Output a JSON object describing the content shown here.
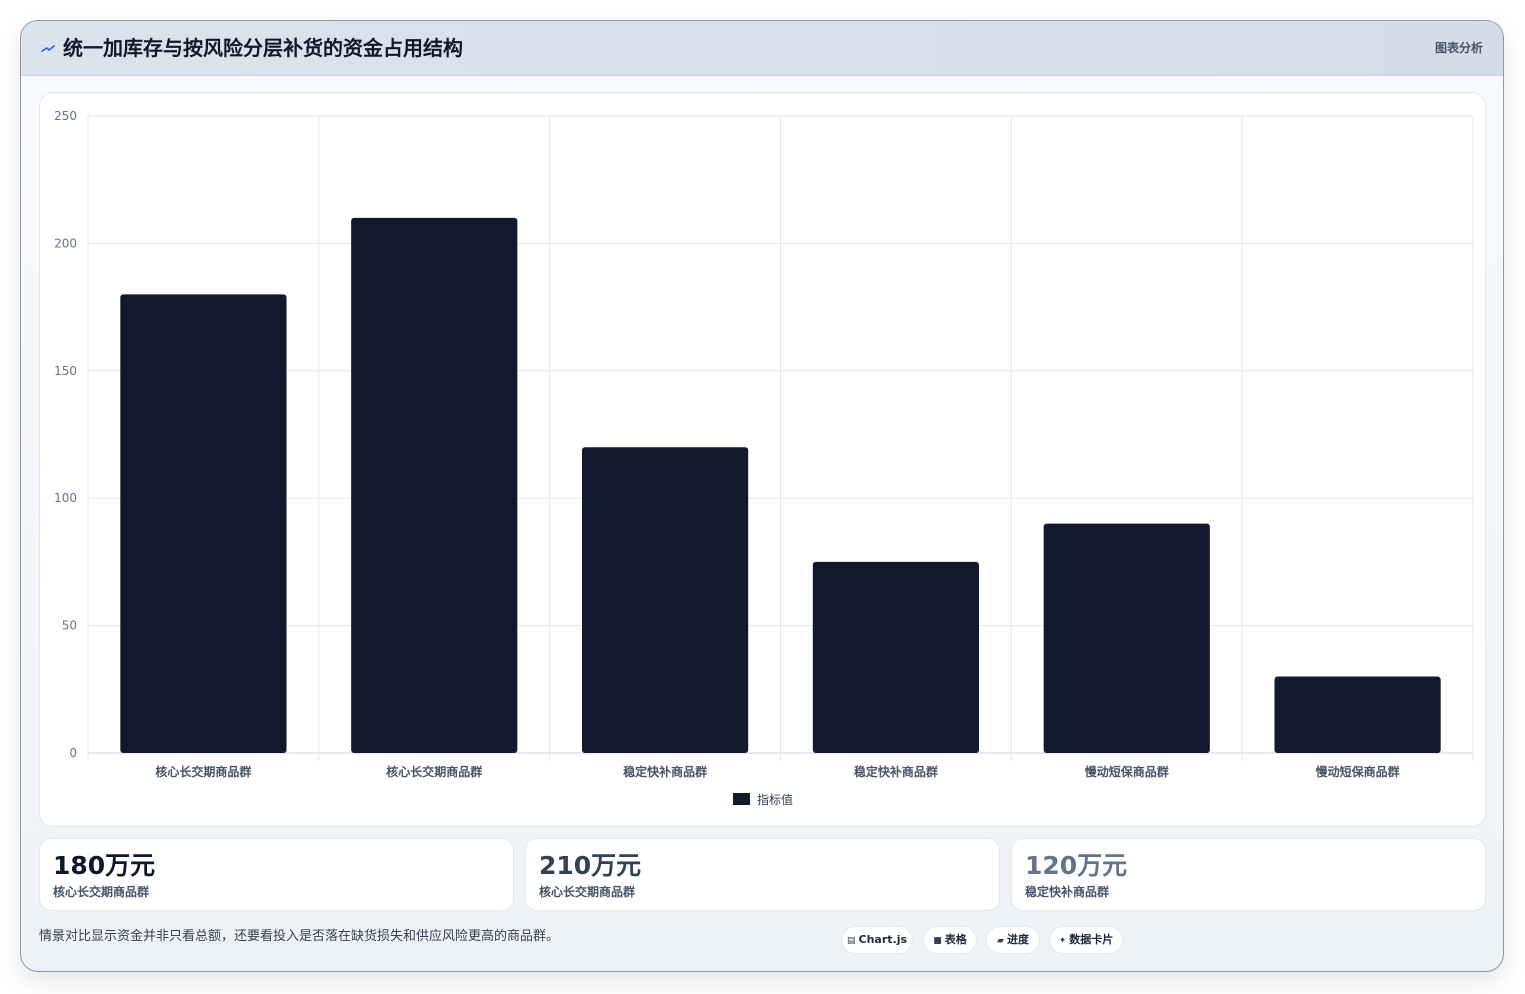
{
  "header": {
    "title": "统一加库存与按风险分层补货的资金占用结构",
    "tag": "图表分析",
    "title_icon": "trend-icon"
  },
  "chart_data": {
    "type": "bar",
    "categories": [
      "核心长交期商品群",
      "核心长交期商品群",
      "稳定快补商品群",
      "稳定快补商品群",
      "慢动短保商品群",
      "慢动短保商品群"
    ],
    "series": [
      {
        "name": "指标值",
        "values": [
          180,
          210,
          120,
          75,
          90,
          30
        ],
        "color": "#111a2c"
      }
    ],
    "yticks": [
      0,
      50,
      100,
      150,
      200,
      250
    ],
    "ylim": [
      0,
      250
    ],
    "grid": true,
    "legend_position": "bottom"
  },
  "kpis": [
    {
      "value": "180万元",
      "label": "核心长交期商品群",
      "color": "#0f172a"
    },
    {
      "value": "210万元",
      "label": "核心长交期商品群",
      "color": "#334155"
    },
    {
      "value": "120万元",
      "label": "稳定快补商品群",
      "color": "#64748b"
    }
  ],
  "footer": {
    "note": "情景对比显示资金并非只看总额，还要看投入是否落在缺货损失和供应风险更高的商品群。"
  },
  "chips": [
    {
      "icon": "▤",
      "label": "Chart.js",
      "icon_name": "chart-icon"
    },
    {
      "icon": "■",
      "label": "表格",
      "icon_name": "table-icon"
    },
    {
      "icon": "▰",
      "label": "进度",
      "icon_name": "progress-icon"
    },
    {
      "icon": "✦",
      "label": "数据卡片",
      "icon_name": "card-icon"
    }
  ]
}
